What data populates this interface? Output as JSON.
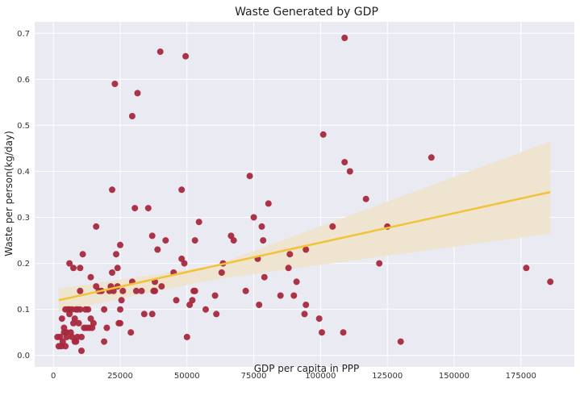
{
  "chart_data": {
    "type": "scatter",
    "title": "Waste Generated by GDP",
    "xlabel": "GDP per capita in PPP",
    "ylabel": "Waste per person(kg/day)",
    "xlim": [
      -7000,
      195000
    ],
    "ylim": [
      -0.025,
      0.725
    ],
    "xticks": [
      0,
      25000,
      50000,
      75000,
      100000,
      125000,
      150000,
      175000
    ],
    "yticks": [
      0.0,
      0.1,
      0.2,
      0.3,
      0.4,
      0.5,
      0.6,
      0.7
    ],
    "xtick_labels": [
      "0",
      "25000",
      "50000",
      "75000",
      "100000",
      "125000",
      "150000",
      "175000"
    ],
    "ytick_labels": [
      "0.0",
      "0.1",
      "0.2",
      "0.3",
      "0.4",
      "0.5",
      "0.6",
      "0.7"
    ],
    "grid": true,
    "colors": {
      "background": "#eaeaf2",
      "grid": "#ffffff",
      "points": "#a8293e",
      "regression_line": "#f2c23a",
      "confidence_band": "#efe3c9"
    },
    "regression": {
      "x": [
        2000,
        186000
      ],
      "y": [
        0.12,
        0.355
      ],
      "ci_x": [
        2000,
        60000,
        186000
      ],
      "ci_lower": [
        0.095,
        0.165,
        0.265
      ],
      "ci_upper": [
        0.145,
        0.195,
        0.465
      ]
    },
    "points": [
      [
        1500,
        0.04
      ],
      [
        2000,
        0.02
      ],
      [
        2500,
        0.04
      ],
      [
        3000,
        0.02
      ],
      [
        3200,
        0.08
      ],
      [
        3500,
        0.03
      ],
      [
        4000,
        0.05
      ],
      [
        4000,
        0.06
      ],
      [
        4500,
        0.02
      ],
      [
        4500,
        0.1
      ],
      [
        5000,
        0.04
      ],
      [
        5000,
        0.05
      ],
      [
        5500,
        0.1
      ],
      [
        6000,
        0.09
      ],
      [
        6000,
        0.1
      ],
      [
        6000,
        0.2
      ],
      [
        6500,
        0.05
      ],
      [
        7000,
        0.04
      ],
      [
        7000,
        0.1
      ],
      [
        7500,
        0.07
      ],
      [
        7500,
        0.19
      ],
      [
        8000,
        0.03
      ],
      [
        8000,
        0.08
      ],
      [
        8500,
        0.03
      ],
      [
        8500,
        0.1
      ],
      [
        9000,
        0.1
      ],
      [
        9000,
        0.04
      ],
      [
        9500,
        0.07
      ],
      [
        10000,
        0.14
      ],
      [
        10000,
        0.1
      ],
      [
        10000,
        0.19
      ],
      [
        10500,
        0.04
      ],
      [
        10500,
        0.01
      ],
      [
        11000,
        0.22
      ],
      [
        11500,
        0.06
      ],
      [
        12000,
        0.1
      ],
      [
        12500,
        0.06
      ],
      [
        13000,
        0.1
      ],
      [
        13500,
        0.06
      ],
      [
        14000,
        0.08
      ],
      [
        14000,
        0.17
      ],
      [
        14500,
        0.06
      ],
      [
        15000,
        0.07
      ],
      [
        16000,
        0.28
      ],
      [
        16000,
        0.15
      ],
      [
        17000,
        0.14
      ],
      [
        18000,
        0.14
      ],
      [
        19000,
        0.03
      ],
      [
        19000,
        0.1
      ],
      [
        20000,
        0.06
      ],
      [
        21000,
        0.14
      ],
      [
        21500,
        0.15
      ],
      [
        22000,
        0.18
      ],
      [
        22000,
        0.36
      ],
      [
        22500,
        0.14
      ],
      [
        23000,
        0.59
      ],
      [
        23500,
        0.22
      ],
      [
        24000,
        0.15
      ],
      [
        24000,
        0.19
      ],
      [
        24500,
        0.07
      ],
      [
        25000,
        0.07
      ],
      [
        25000,
        0.1
      ],
      [
        25000,
        0.24
      ],
      [
        25500,
        0.12
      ],
      [
        26000,
        0.14
      ],
      [
        29000,
        0.05
      ],
      [
        29500,
        0.52
      ],
      [
        29500,
        0.16
      ],
      [
        30500,
        0.32
      ],
      [
        31000,
        0.14
      ],
      [
        31500,
        0.57
      ],
      [
        33000,
        0.14
      ],
      [
        34000,
        0.09
      ],
      [
        35500,
        0.32
      ],
      [
        37000,
        0.26
      ],
      [
        37000,
        0.09
      ],
      [
        37500,
        0.14
      ],
      [
        38000,
        0.16
      ],
      [
        38000,
        0.14
      ],
      [
        39000,
        0.23
      ],
      [
        40000,
        0.66
      ],
      [
        40500,
        0.15
      ],
      [
        42000,
        0.25
      ],
      [
        45000,
        0.18
      ],
      [
        46000,
        0.12
      ],
      [
        48000,
        0.36
      ],
      [
        48000,
        0.21
      ],
      [
        49000,
        0.2
      ],
      [
        49500,
        0.65
      ],
      [
        50000,
        0.04
      ],
      [
        51000,
        0.11
      ],
      [
        52000,
        0.12
      ],
      [
        52500,
        0.14
      ],
      [
        53000,
        0.25
      ],
      [
        53000,
        0.14
      ],
      [
        54500,
        0.29
      ],
      [
        57000,
        0.1
      ],
      [
        60500,
        0.13
      ],
      [
        61000,
        0.09
      ],
      [
        63000,
        0.18
      ],
      [
        63500,
        0.2
      ],
      [
        66500,
        0.26
      ],
      [
        67500,
        0.25
      ],
      [
        72000,
        0.14
      ],
      [
        73500,
        0.39
      ],
      [
        75000,
        0.3
      ],
      [
        76500,
        0.21
      ],
      [
        77000,
        0.11
      ],
      [
        78000,
        0.28
      ],
      [
        78500,
        0.25
      ],
      [
        79000,
        0.17
      ],
      [
        80500,
        0.33
      ],
      [
        85000,
        0.13
      ],
      [
        88000,
        0.19
      ],
      [
        88500,
        0.22
      ],
      [
        90000,
        0.13
      ],
      [
        91000,
        0.16
      ],
      [
        94000,
        0.09
      ],
      [
        94500,
        0.11
      ],
      [
        94500,
        0.23
      ],
      [
        99500,
        0.08
      ],
      [
        100500,
        0.05
      ],
      [
        101000,
        0.48
      ],
      [
        104500,
        0.28
      ],
      [
        108500,
        0.05
      ],
      [
        109000,
        0.42
      ],
      [
        109000,
        0.69
      ],
      [
        111000,
        0.4
      ],
      [
        117000,
        0.34
      ],
      [
        122000,
        0.2
      ],
      [
        125000,
        0.28
      ],
      [
        130000,
        0.03
      ],
      [
        141500,
        0.43
      ],
      [
        177000,
        0.19
      ],
      [
        186000,
        0.16
      ]
    ]
  }
}
